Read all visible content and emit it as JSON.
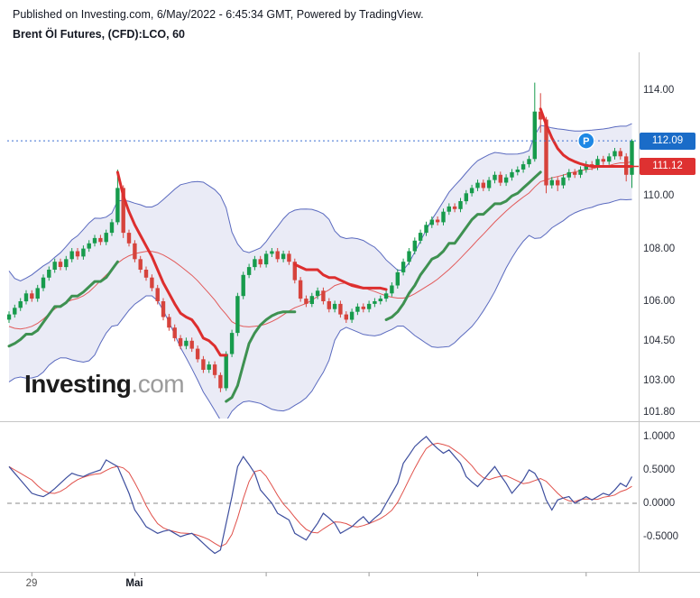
{
  "header": {
    "published_line": "Published on Investing.com, 6/May/2022 - 6:45:34 GMT, Powered by TradingView.",
    "instrument_line": "Brent Öl Futures, (CFD):LCO, 60"
  },
  "watermark": {
    "bold": "Investing",
    "suffix": ".com"
  },
  "price_axis": {
    "ticks": [
      {
        "label": "114.00",
        "value": 114.0
      },
      {
        "label": "110.00",
        "value": 110.0
      },
      {
        "label": "108.00",
        "value": 108.0
      },
      {
        "label": "106.00",
        "value": 106.0
      },
      {
        "label": "104.50",
        "value": 104.5
      },
      {
        "label": "103.00",
        "value": 103.0
      },
      {
        "label": "101.80",
        "value": 101.8
      }
    ],
    "badges": [
      {
        "label": "112.09",
        "value": 112.09,
        "color": "#1a6cc8",
        "type": "current-price"
      },
      {
        "label": "111.12",
        "value": 111.12,
        "color": "#de3131",
        "type": "indicator-stop"
      }
    ]
  },
  "oscillator_axis": {
    "ticks": [
      {
        "label": "1.0000",
        "value": 1.0
      },
      {
        "label": "0.5000",
        "value": 0.5
      },
      {
        "label": "0.0000",
        "value": 0.0
      },
      {
        "label": "-0.5000",
        "value": -0.5
      }
    ]
  },
  "time_axis": {
    "labels": [
      {
        "text": "29",
        "index": 4,
        "bold": false
      },
      {
        "text": "Mai",
        "index": 22,
        "bold": true
      }
    ],
    "tick_indices": [
      4,
      22,
      45,
      63,
      82,
      101
    ]
  },
  "marker": {
    "label": "P",
    "index": 101,
    "price": 112.09,
    "color": "#1e88e5"
  },
  "colors": {
    "up": "#179b4c",
    "down": "#d6433c",
    "trend_up": "#3e9151",
    "trend_down": "#dd2e2e",
    "bb_line": "#5a6abf",
    "bb_fill": "rgba(122,129,200,0.16)",
    "basis": "#e25a5a",
    "osc_main": "#3d4e9e",
    "osc_signal": "#e0504a",
    "dotted": "#3b6fd1",
    "axis_line": "#c6c6c6"
  },
  "chart_data": {
    "type": "candlestick",
    "title": "Brent Öl Futures, (CFD):LCO, 60",
    "x_labels": [
      "29",
      "Mai"
    ],
    "y_ticks_price": [
      114.0,
      110.0,
      108.0,
      106.0,
      104.5,
      103.0,
      101.8
    ],
    "y_ticks_oscillator": [
      1.0,
      0.5,
      0.0,
      -0.5
    ],
    "ylim_price": [
      101.55,
      115.45
    ],
    "ylim_oscillator": [
      -0.97,
      1.16
    ],
    "current_price": 112.09,
    "candles": [
      [
        105.3,
        105.62,
        105.18,
        105.5
      ],
      [
        105.5,
        105.87,
        105.38,
        105.75
      ],
      [
        105.75,
        106.12,
        105.63,
        106.0
      ],
      [
        106.0,
        106.42,
        105.88,
        106.3
      ],
      [
        106.3,
        106.42,
        105.98,
        106.1
      ],
      [
        106.1,
        106.62,
        105.98,
        106.5
      ],
      [
        106.5,
        107.02,
        106.38,
        106.9
      ],
      [
        106.9,
        107.32,
        106.78,
        107.2
      ],
      [
        107.2,
        107.62,
        107.08,
        107.5
      ],
      [
        107.5,
        107.62,
        107.18,
        107.3
      ],
      [
        107.3,
        107.72,
        107.18,
        107.6
      ],
      [
        107.6,
        108.02,
        107.48,
        107.9
      ],
      [
        107.9,
        108.02,
        107.58,
        107.7
      ],
      [
        107.7,
        108.12,
        107.58,
        108.0
      ],
      [
        108.0,
        108.32,
        107.88,
        108.2
      ],
      [
        108.2,
        108.52,
        108.08,
        108.4
      ],
      [
        108.4,
        108.52,
        108.13,
        108.25
      ],
      [
        108.25,
        108.72,
        108.13,
        108.6
      ],
      [
        108.6,
        109.12,
        108.48,
        109.0
      ],
      [
        109.0,
        111.0,
        108.9,
        110.3
      ],
      [
        110.3,
        110.4,
        108.4,
        108.6
      ],
      [
        108.6,
        108.72,
        108.08,
        108.2
      ],
      [
        108.2,
        108.32,
        107.48,
        107.6
      ],
      [
        107.6,
        107.72,
        107.08,
        107.2
      ],
      [
        107.2,
        107.32,
        106.78,
        106.9
      ],
      [
        106.9,
        107.02,
        106.38,
        106.5
      ],
      [
        106.5,
        106.62,
        105.88,
        106.0
      ],
      [
        106.0,
        106.12,
        105.28,
        105.4
      ],
      [
        105.4,
        105.52,
        104.88,
        105.0
      ],
      [
        105.0,
        105.12,
        104.48,
        104.6
      ],
      [
        104.6,
        104.72,
        104.18,
        104.3
      ],
      [
        104.3,
        104.62,
        104.18,
        104.5
      ],
      [
        104.5,
        104.62,
        104.08,
        104.2
      ],
      [
        104.2,
        104.32,
        103.68,
        103.8
      ],
      [
        103.8,
        103.92,
        103.28,
        103.4
      ],
      [
        103.4,
        103.72,
        103.28,
        103.6
      ],
      [
        103.6,
        103.72,
        103.08,
        103.2
      ],
      [
        103.2,
        103.3,
        102.55,
        102.7
      ],
      [
        102.7,
        104.1,
        102.6,
        104.0
      ],
      [
        104.0,
        104.92,
        103.88,
        104.8
      ],
      [
        104.8,
        106.32,
        104.68,
        106.2
      ],
      [
        106.2,
        107.12,
        106.08,
        107.0
      ],
      [
        107.0,
        107.42,
        106.88,
        107.3
      ],
      [
        107.3,
        107.72,
        107.18,
        107.6
      ],
      [
        107.6,
        107.72,
        107.28,
        107.4
      ],
      [
        107.4,
        107.92,
        107.28,
        107.8
      ],
      [
        107.8,
        108.02,
        107.68,
        107.9
      ],
      [
        107.9,
        108.02,
        107.48,
        107.6
      ],
      [
        107.6,
        107.92,
        107.48,
        107.8
      ],
      [
        107.8,
        107.92,
        107.38,
        107.5
      ],
      [
        107.5,
        107.62,
        106.68,
        106.8
      ],
      [
        106.8,
        106.92,
        105.98,
        106.1
      ],
      [
        106.1,
        106.22,
        105.78,
        105.9
      ],
      [
        105.9,
        106.32,
        105.78,
        106.2
      ],
      [
        106.2,
        106.52,
        106.08,
        106.4
      ],
      [
        106.4,
        106.52,
        105.88,
        106.0
      ],
      [
        106.0,
        106.12,
        105.58,
        105.7
      ],
      [
        105.7,
        106.02,
        105.58,
        105.9
      ],
      [
        105.9,
        106.02,
        105.38,
        105.5
      ],
      [
        105.5,
        105.62,
        105.18,
        105.3
      ],
      [
        105.3,
        105.72,
        105.18,
        105.6
      ],
      [
        105.6,
        105.92,
        105.48,
        105.8
      ],
      [
        105.8,
        105.92,
        105.58,
        105.7
      ],
      [
        105.7,
        106.02,
        105.58,
        105.9
      ],
      [
        105.9,
        106.12,
        105.78,
        106.0
      ],
      [
        106.0,
        106.22,
        105.88,
        106.1
      ],
      [
        106.1,
        106.42,
        105.98,
        106.3
      ],
      [
        106.3,
        106.72,
        106.18,
        106.6
      ],
      [
        106.6,
        107.22,
        106.48,
        107.1
      ],
      [
        107.1,
        107.62,
        106.98,
        107.5
      ],
      [
        107.5,
        108.02,
        107.38,
        107.9
      ],
      [
        107.9,
        108.42,
        107.78,
        108.3
      ],
      [
        108.3,
        108.72,
        108.18,
        108.6
      ],
      [
        108.6,
        109.02,
        108.48,
        108.9
      ],
      [
        108.9,
        109.22,
        108.78,
        109.1
      ],
      [
        109.1,
        109.22,
        108.88,
        109.0
      ],
      [
        109.0,
        109.52,
        108.88,
        109.4
      ],
      [
        109.4,
        109.72,
        109.28,
        109.6
      ],
      [
        109.6,
        109.72,
        109.38,
        109.5
      ],
      [
        109.5,
        109.92,
        109.38,
        109.8
      ],
      [
        109.8,
        110.22,
        109.68,
        110.1
      ],
      [
        110.1,
        110.42,
        109.98,
        110.3
      ],
      [
        110.3,
        110.62,
        110.18,
        110.5
      ],
      [
        110.5,
        110.62,
        110.18,
        110.3
      ],
      [
        110.3,
        110.72,
        110.18,
        110.6
      ],
      [
        110.6,
        110.92,
        110.48,
        110.8
      ],
      [
        110.8,
        110.92,
        110.38,
        110.5
      ],
      [
        110.5,
        110.82,
        110.38,
        110.7
      ],
      [
        110.7,
        111.02,
        110.58,
        110.9
      ],
      [
        110.9,
        111.12,
        110.78,
        111.0
      ],
      [
        111.0,
        111.32,
        110.88,
        111.2
      ],
      [
        111.2,
        111.52,
        111.08,
        111.4
      ],
      [
        111.4,
        114.3,
        111.3,
        113.2
      ],
      [
        113.2,
        113.9,
        112.4,
        112.9
      ],
      [
        112.9,
        113.0,
        110.1,
        110.4
      ],
      [
        110.4,
        110.72,
        110.28,
        110.6
      ],
      [
        110.6,
        110.72,
        110.18,
        110.4
      ],
      [
        110.4,
        110.82,
        110.28,
        110.7
      ],
      [
        110.7,
        111.02,
        110.58,
        110.9
      ],
      [
        110.9,
        111.02,
        110.68,
        110.8
      ],
      [
        110.8,
        111.12,
        110.68,
        111.0
      ],
      [
        111.0,
        111.32,
        110.88,
        111.2
      ],
      [
        111.2,
        111.32,
        110.98,
        111.1
      ],
      [
        111.1,
        111.52,
        110.98,
        111.4
      ],
      [
        111.4,
        111.52,
        111.18,
        111.3
      ],
      [
        111.3,
        111.62,
        111.18,
        111.5
      ],
      [
        111.5,
        111.82,
        111.38,
        111.7
      ],
      [
        111.7,
        111.82,
        111.38,
        111.5
      ],
      [
        111.5,
        111.62,
        110.55,
        110.8
      ],
      [
        110.8,
        112.15,
        110.3,
        112.09
      ]
    ],
    "pre_closes": [
      106.8,
      107.2,
      106.5,
      105.6,
      104.8,
      104.2,
      103.6,
      103.3,
      103.8,
      104.5,
      105.3,
      106.1,
      106.6,
      106.0,
      105.2,
      104.4,
      103.8,
      104.3,
      104.9,
      105.3
    ],
    "indicators": {
      "bollinger": {
        "period": 20,
        "stddev": 2
      },
      "current_price_line": 112.09,
      "stop_line_value": 111.12,
      "trend_segments": [
        {
          "dir": "up",
          "start": 0,
          "values": [
            104.3,
            104.4,
            104.55,
            104.75,
            104.75,
            104.9,
            105.2,
            105.5,
            105.8,
            105.8,
            105.95,
            106.2,
            106.2,
            106.35,
            106.55,
            106.75,
            106.75,
            106.9,
            107.2,
            107.5
          ]
        },
        {
          "dir": "down",
          "start": 19,
          "values": [
            110.9,
            110.0,
            109.4,
            108.9,
            108.5,
            108.1,
            107.7,
            107.2,
            106.7,
            106.3,
            105.9,
            105.55,
            105.4,
            105.3,
            105.0,
            104.6,
            104.5,
            104.3,
            103.95,
            103.95
          ]
        },
        {
          "dir": "up",
          "start": 38,
          "values": [
            102.2,
            102.35,
            102.8,
            103.6,
            104.4,
            104.8,
            105.1,
            105.3,
            105.45,
            105.55,
            105.6,
            105.6,
            105.6
          ]
        },
        {
          "dir": "down",
          "start": 50,
          "values": [
            107.4,
            107.3,
            107.2,
            107.2,
            107.2,
            107.0,
            106.9,
            106.9,
            106.8,
            106.7,
            106.6,
            106.55,
            106.5,
            106.5,
            106.5,
            106.5,
            106.45
          ]
        },
        {
          "dir": "up",
          "start": 66,
          "values": [
            105.3,
            105.4,
            105.6,
            105.9,
            106.3,
            106.6,
            107.0,
            107.3,
            107.6,
            107.7,
            107.9,
            108.2,
            108.2,
            108.5,
            108.8,
            109.1,
            109.3,
            109.3,
            109.5,
            109.7,
            109.7,
            109.8,
            110.0,
            110.1,
            110.3,
            110.5,
            110.7,
            110.9
          ]
        },
        {
          "dir": "down",
          "start": 93,
          "values": [
            113.3,
            112.7,
            112.2,
            111.8,
            111.55,
            111.4,
            111.3,
            111.22,
            111.16,
            111.12,
            111.12,
            111.12,
            111.12,
            111.12,
            111.12,
            111.12,
            111.12
          ]
        }
      ]
    },
    "oscillator": {
      "signal_sma": 5,
      "ticks": [
        1.0,
        0.5,
        0.0,
        -0.5
      ],
      "values": [
        0.55,
        0.45,
        0.35,
        0.25,
        0.15,
        0.12,
        0.1,
        0.15,
        0.22,
        0.3,
        0.38,
        0.45,
        0.42,
        0.4,
        0.44,
        0.47,
        0.5,
        0.65,
        0.6,
        0.55,
        0.35,
        0.15,
        -0.1,
        -0.22,
        -0.35,
        -0.4,
        -0.45,
        -0.42,
        -0.4,
        -0.45,
        -0.5,
        -0.47,
        -0.45,
        -0.52,
        -0.6,
        -0.68,
        -0.75,
        -0.7,
        -0.3,
        0.1,
        0.55,
        0.7,
        0.58,
        0.45,
        0.2,
        0.1,
        0.0,
        -0.15,
        -0.2,
        -0.25,
        -0.45,
        -0.5,
        -0.55,
        -0.42,
        -0.3,
        -0.15,
        -0.22,
        -0.3,
        -0.45,
        -0.4,
        -0.35,
        -0.27,
        -0.2,
        -0.3,
        -0.22,
        -0.15,
        0.0,
        0.15,
        0.3,
        0.6,
        0.72,
        0.85,
        0.93,
        1.0,
        0.9,
        0.82,
        0.75,
        0.8,
        0.7,
        0.6,
        0.4,
        0.32,
        0.25,
        0.35,
        0.45,
        0.55,
        0.42,
        0.3,
        0.15,
        0.25,
        0.35,
        0.5,
        0.45,
        0.3,
        0.05,
        -0.1,
        0.05,
        0.08,
        0.1,
        0.0,
        0.05,
        0.1,
        0.05,
        0.1,
        0.15,
        0.12,
        0.2,
        0.3,
        0.25,
        0.4
      ]
    }
  }
}
